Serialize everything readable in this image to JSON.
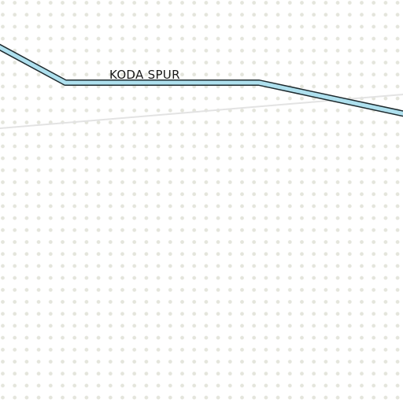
{
  "map": {
    "background_color": "#ffffff",
    "dot_color": "#e4e5dc",
    "roads": [
      {
        "name": "KODA SPUR",
        "type": "spur",
        "fill_color": "#aee0ee",
        "casing_color": "#1e2a2e"
      },
      {
        "name": "",
        "type": "minor-track",
        "fill_color": "#e3e3e3"
      }
    ],
    "label_color": "#1a1a1a"
  }
}
